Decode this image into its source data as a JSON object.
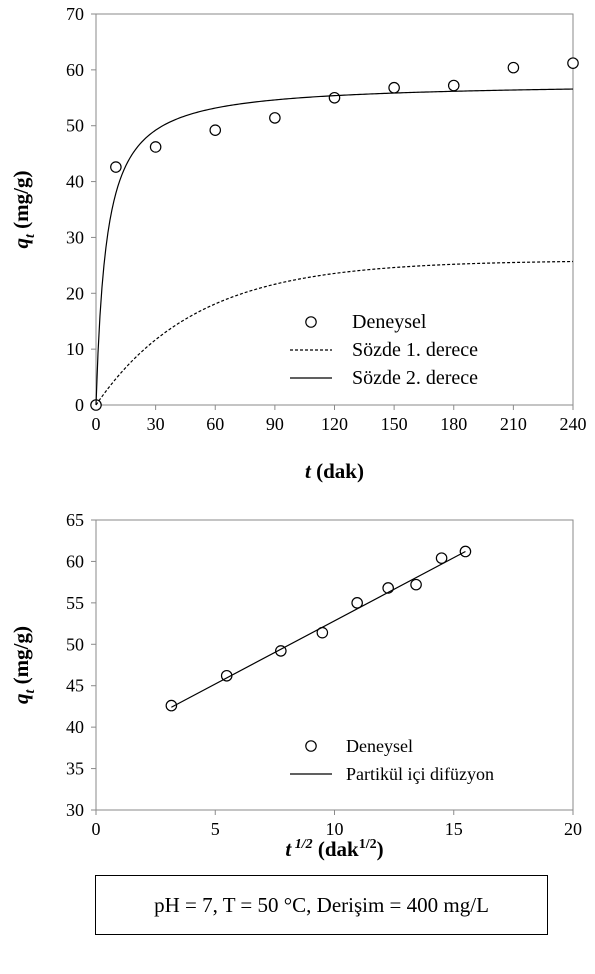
{
  "chart_data": [
    {
      "type": "scatter",
      "title": "",
      "xlabel": {
        "var": "t",
        "unit": " (dak)"
      },
      "ylabel": {
        "var": "q",
        "sub": "t",
        "unit": " (mg/g)"
      },
      "xlim": [
        0,
        240
      ],
      "ylim": [
        0,
        70
      ],
      "xticks": [
        0,
        30,
        60,
        90,
        120,
        150,
        180,
        210,
        240
      ],
      "yticks": [
        0,
        10,
        20,
        30,
        40,
        50,
        60,
        70
      ],
      "grid": false,
      "legend_position": "bottom-right",
      "series": [
        {
          "name": "Deneysel",
          "style": "markers",
          "x": [
            0,
            10,
            30,
            60,
            90,
            120,
            150,
            180,
            210,
            240
          ],
          "y": [
            0,
            42.6,
            46.2,
            49.2,
            51.4,
            55.0,
            56.8,
            57.2,
            60.4,
            61.2
          ]
        },
        {
          "name": "Sözde 1. derece",
          "style": "dashed",
          "model": "pfo",
          "qe": 25.9,
          "k": 0.02
        },
        {
          "name": "Sözde 2. derece",
          "style": "solid",
          "model": "pso",
          "qe": 57.8,
          "k": 0.0033
        }
      ]
    },
    {
      "type": "scatter",
      "title": "",
      "xlabel": {
        "var": "t",
        "sup": " 1/2",
        "unit": " (dak",
        "unitsup": "1/2",
        "close": ")"
      },
      "ylabel": {
        "var": "q",
        "sub": "t",
        "unit": " (mg/g)"
      },
      "xlim": [
        0,
        20
      ],
      "ylim": [
        30,
        65
      ],
      "xticks": [
        0,
        5,
        10,
        15,
        20
      ],
      "yticks": [
        30,
        35,
        40,
        45,
        50,
        55,
        60,
        65
      ],
      "grid": false,
      "legend_position": "bottom-right",
      "series": [
        {
          "name": "Deneysel",
          "style": "markers",
          "x": [
            3.16,
            5.48,
            7.75,
            9.49,
            10.95,
            12.25,
            13.42,
            14.49,
            15.49
          ],
          "y": [
            42.6,
            46.2,
            49.2,
            51.4,
            55.0,
            56.8,
            57.2,
            60.4,
            61.2
          ]
        },
        {
          "name": "Partikül içi difüzyon",
          "style": "solid",
          "x": [
            3.16,
            15.49
          ],
          "y": [
            42.4,
            61.2
          ]
        }
      ]
    }
  ],
  "conditions": "pH = 7, T = 50 °C, Derişim = 400 mg/L"
}
